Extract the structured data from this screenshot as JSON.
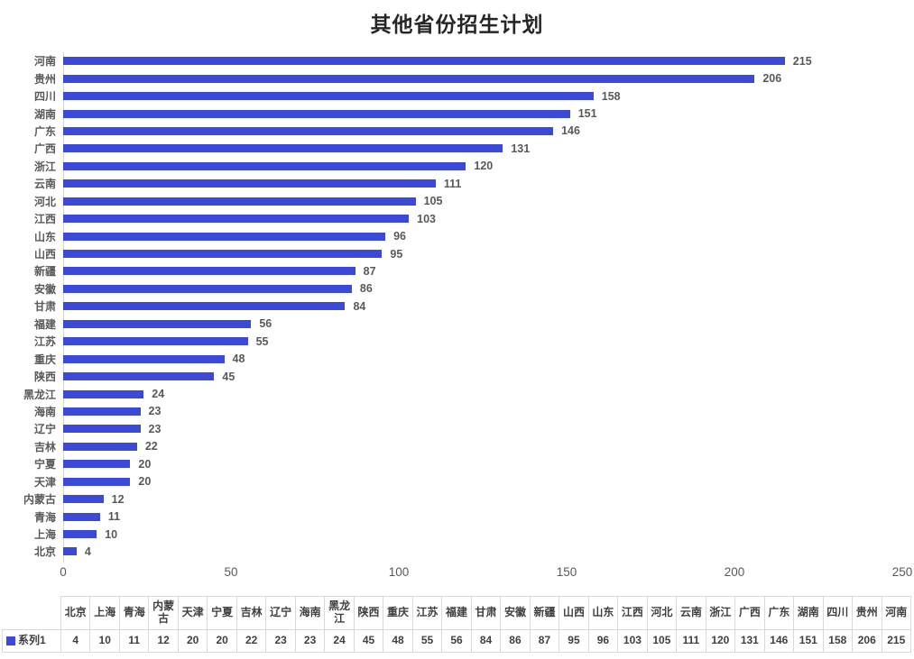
{
  "title": "其他省份招生计划",
  "colors": {
    "bar": "#3c48d8",
    "chart_label": "#595959",
    "table_border": "#d9d9d9",
    "table_text": "#3f3f3f",
    "title_text": "#262626"
  },
  "chart_data": {
    "type": "bar",
    "orientation": "horizontal",
    "title": "其他省份招生计划",
    "xlabel": "",
    "ylabel": "",
    "xlim": [
      0,
      250
    ],
    "x_ticks": [
      0,
      50,
      100,
      150,
      200,
      250
    ],
    "grid": false,
    "value_labels": true,
    "legend_position": "bottom-table",
    "categories": [
      "河南",
      "贵州",
      "四川",
      "湖南",
      "广东",
      "广西",
      "浙江",
      "云南",
      "河北",
      "江西",
      "山东",
      "山西",
      "新疆",
      "安徽",
      "甘肃",
      "福建",
      "江苏",
      "重庆",
      "陕西",
      "黑龙江",
      "海南",
      "辽宁",
      "吉林",
      "宁夏",
      "天津",
      "内蒙古",
      "青海",
      "上海",
      "北京"
    ],
    "series": [
      {
        "name": "系列1",
        "values": [
          215,
          206,
          158,
          151,
          146,
          131,
          120,
          111,
          105,
          103,
          96,
          95,
          87,
          86,
          84,
          56,
          55,
          48,
          45,
          24,
          23,
          23,
          22,
          20,
          20,
          12,
          11,
          10,
          4
        ]
      }
    ]
  },
  "table": {
    "corner_label": "",
    "row_label": "系列1",
    "columns": [
      "北京",
      "上海",
      "青海",
      "内蒙古",
      "天津",
      "宁夏",
      "吉林",
      "辽宁",
      "海南",
      "黑龙江",
      "陕西",
      "重庆",
      "江苏",
      "福建",
      "甘肃",
      "安徽",
      "新疆",
      "山西",
      "山东",
      "江西",
      "河北",
      "云南",
      "浙江",
      "广西",
      "广东",
      "湖南",
      "四川",
      "贵州",
      "河南"
    ],
    "values": [
      4,
      10,
      11,
      12,
      20,
      20,
      22,
      23,
      23,
      24,
      45,
      48,
      55,
      56,
      84,
      86,
      87,
      95,
      96,
      103,
      105,
      111,
      120,
      131,
      146,
      151,
      158,
      206,
      215
    ]
  }
}
